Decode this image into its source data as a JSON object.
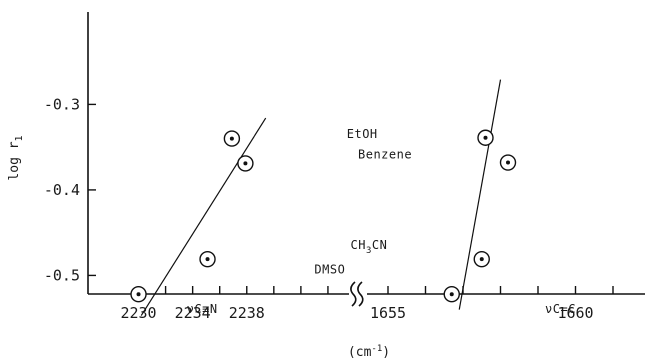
{
  "chart_data": {
    "type": "scatter",
    "title": "",
    "ylabel": "log r",
    "ylabel_subscript": "1",
    "xlabel": "(cm",
    "xlabel_superscript": "-1",
    "xlabel_close": ")",
    "ylim": [
      -0.565,
      -0.22
    ],
    "yticks": [
      -0.3,
      -0.4,
      -0.5
    ],
    "ytick_labels": [
      "-0.3",
      "-0.4",
      "-0.5"
    ],
    "axis_break": true,
    "panels": [
      {
        "xlim": [
          2229,
          2246
        ],
        "xticks": [
          2230,
          2232,
          2234,
          2236,
          2238,
          2240,
          2242,
          2244
        ],
        "xtick_labels": [
          {
            "x": 2230,
            "label": "2230"
          },
          {
            "x": 2234,
            "label": "2234"
          },
          {
            "x": 2238,
            "label": "2238"
          }
        ],
        "points": [
          {
            "x": 2230.0,
            "y": -0.522
          },
          {
            "x": 2235.1,
            "y": -0.481
          },
          {
            "x": 2236.9,
            "y": -0.34
          },
          {
            "x": 2237.9,
            "y": -0.369
          }
        ],
        "fit_line": [
          {
            "x": 2230.2,
            "y": -0.547
          },
          {
            "x": 2239.4,
            "y": -0.316
          }
        ],
        "annotation": {
          "text": "νC≡N",
          "x": 2234.7,
          "y": -0.544
        }
      },
      {
        "xlim": [
          1654.2,
          1661.8
        ],
        "xticks": [
          1655,
          1656,
          1657,
          1658,
          1659,
          1660,
          1661
        ],
        "xtick_labels": [
          {
            "x": 1655,
            "label": "1655"
          },
          {
            "x": 1660,
            "label": "1660"
          }
        ],
        "points": [
          {
            "x": 1656.7,
            "y": -0.522
          },
          {
            "x": 1657.5,
            "y": -0.481
          },
          {
            "x": 1657.6,
            "y": -0.339
          },
          {
            "x": 1658.2,
            "y": -0.368
          }
        ],
        "fit_line": [
          {
            "x": 1656.9,
            "y": -0.54
          },
          {
            "x": 1658.0,
            "y": -0.271
          }
        ],
        "annotation": {
          "text": "νC=C",
          "x": 1659.6,
          "y": -0.544
        }
      }
    ],
    "solvent_labels": [
      {
        "text": "EtOH",
        "x": 1653.9,
        "y": -0.339
      },
      {
        "text": "Benzene",
        "x": 1654.2,
        "y": -0.363
      },
      {
        "text": "CH",
        "sub": "3",
        "text_after": "CN",
        "x": 1654.0,
        "y": -0.469
      },
      {
        "text": "DMSO",
        "x": 2243.0,
        "y": -0.498
      }
    ]
  }
}
